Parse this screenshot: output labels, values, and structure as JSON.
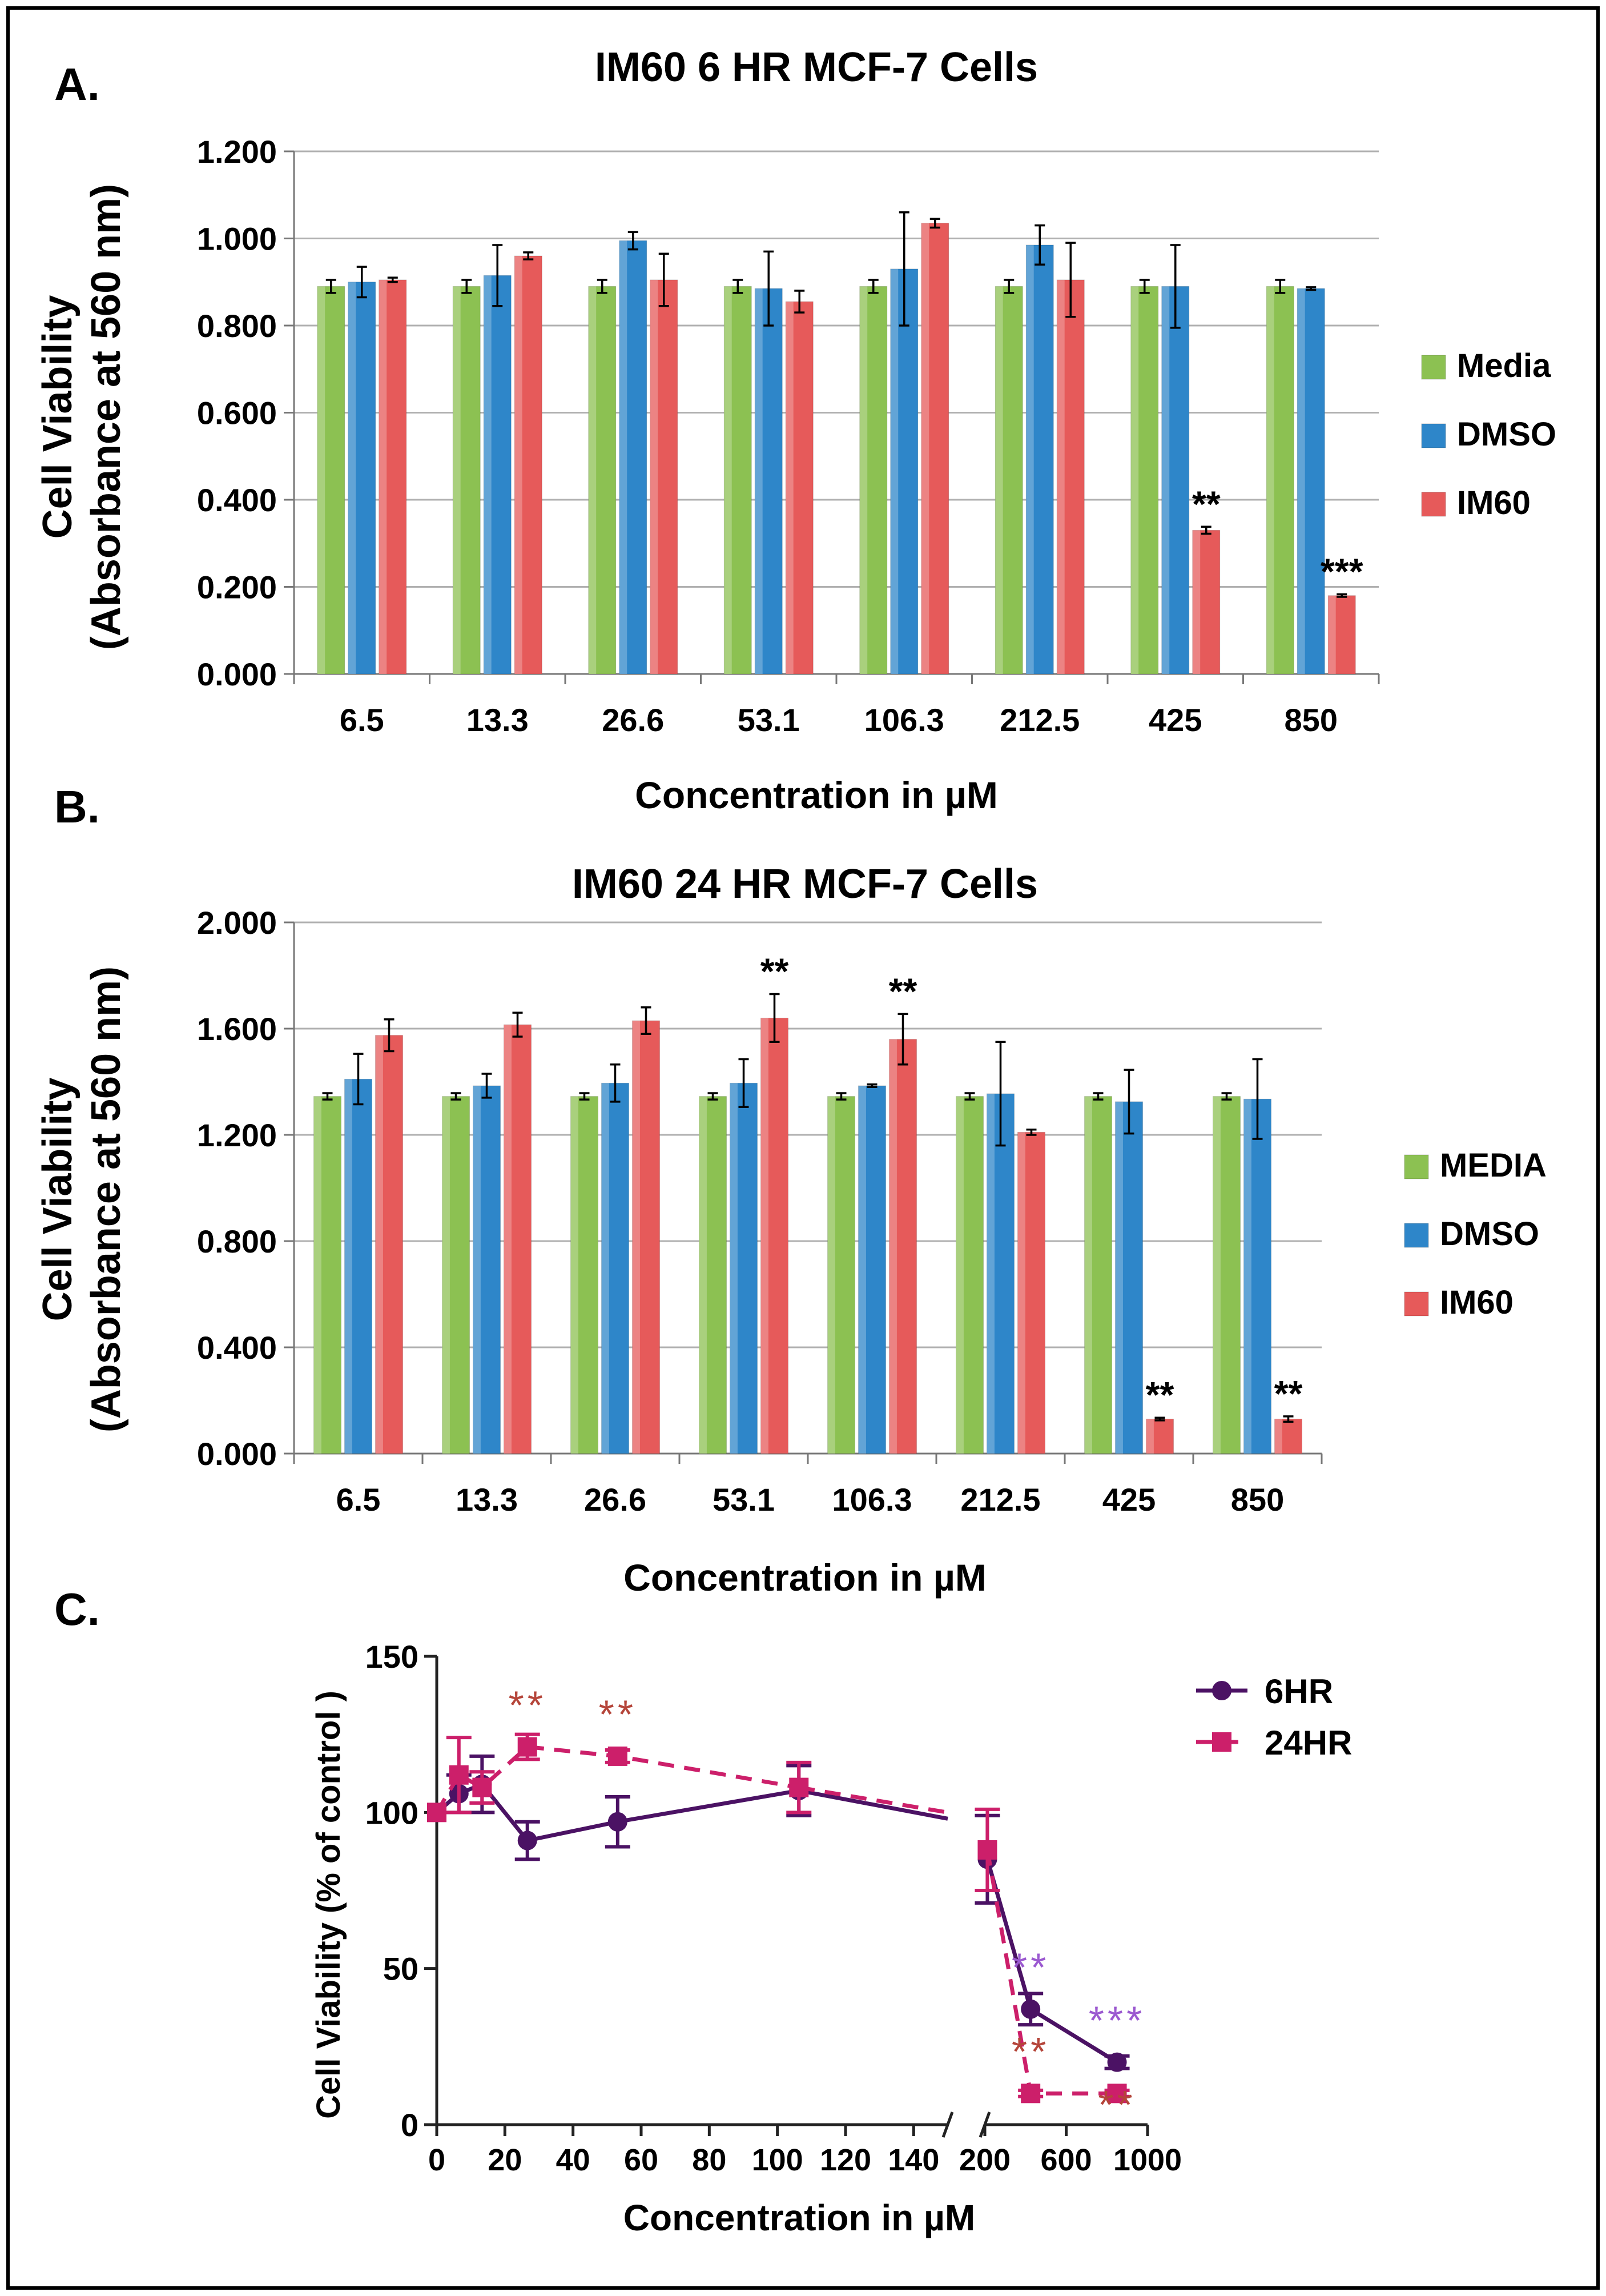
{
  "colors": {
    "media": "#8cc152",
    "dmso": "#2e86c9",
    "im60": "#e65a5a",
    "six_hr": "#4b1264",
    "twentyfour_hr": "#cc1f6a",
    "star_red": "#b5453a",
    "star_purple": "#9b59d0",
    "grid": "#b0b0b0",
    "axis": "#777777"
  },
  "chart_data": [
    {
      "type": "bar",
      "panel_label": "A.",
      "title": "IM60  6 HR MCF-7 Cells",
      "xlabel": "Concentration in µM",
      "ylabel_line1": "Cell Viability",
      "ylabel_line2": "(Absorbance at 560 nm)",
      "ylim": [
        0,
        1.2
      ],
      "yticks": [
        "0.000",
        "0.200",
        "0.400",
        "0.600",
        "0.800",
        "1.000",
        "1.200"
      ],
      "categories": [
        "6.5",
        "13.3",
        "26.6",
        "53.1",
        "106.3",
        "212.5",
        "425",
        "850"
      ],
      "series": [
        {
          "name": "Media",
          "values": [
            0.89,
            0.89,
            0.89,
            0.89,
            0.89,
            0.89,
            0.89,
            0.89
          ],
          "errors": [
            0.015,
            0.015,
            0.015,
            0.015,
            0.015,
            0.015,
            0.015,
            0.015
          ]
        },
        {
          "name": "DMSO",
          "values": [
            0.9,
            0.915,
            0.995,
            0.885,
            0.93,
            0.985,
            0.89,
            0.885
          ],
          "errors": [
            0.035,
            0.07,
            0.02,
            0.085,
            0.13,
            0.045,
            0.095,
            0.003
          ]
        },
        {
          "name": "IM60",
          "values": [
            0.905,
            0.96,
            0.905,
            0.855,
            1.035,
            0.905,
            0.33,
            0.18
          ],
          "errors": [
            0.005,
            0.008,
            0.06,
            0.025,
            0.01,
            0.085,
            0.008,
            0.003
          ]
        }
      ],
      "annotations": [
        {
          "category": "425",
          "series": "IM60",
          "text": "**"
        },
        {
          "category": "850",
          "series": "IM60",
          "text": "***"
        }
      ]
    },
    {
      "type": "bar",
      "panel_label": "B.",
      "title": "IM60  24 HR MCF-7 Cells",
      "xlabel": "Concentration in µM",
      "ylabel_line1": "Cell Viability",
      "ylabel_line2": "(Absorbance at 560 nm)",
      "ylim": [
        0,
        2.0
      ],
      "yticks": [
        "0.000",
        "0.400",
        "0.800",
        "1.200",
        "1.600",
        "2.000"
      ],
      "categories": [
        "6.5",
        "13.3",
        "26.6",
        "53.1",
        "106.3",
        "212.5",
        "425",
        "850"
      ],
      "series": [
        {
          "name": "MEDIA",
          "values": [
            1.345,
            1.345,
            1.345,
            1.345,
            1.345,
            1.345,
            1.345,
            1.345
          ],
          "errors": [
            0.012,
            0.012,
            0.012,
            0.012,
            0.012,
            0.012,
            0.012,
            0.012
          ]
        },
        {
          "name": "DMSO",
          "values": [
            1.41,
            1.385,
            1.395,
            1.395,
            1.385,
            1.355,
            1.325,
            1.335
          ],
          "errors": [
            0.095,
            0.045,
            0.07,
            0.09,
            0.005,
            0.195,
            0.12,
            0.15
          ]
        },
        {
          "name": "IM60",
          "values": [
            1.575,
            1.615,
            1.63,
            1.64,
            1.56,
            1.21,
            0.13,
            0.13
          ],
          "errors": [
            0.06,
            0.045,
            0.05,
            0.09,
            0.095,
            0.01,
            0.005,
            0.01
          ]
        }
      ],
      "annotations": [
        {
          "category": "53.1",
          "series": "IM60",
          "text": "**"
        },
        {
          "category": "106.3",
          "series": "IM60",
          "text": "**"
        },
        {
          "category": "425",
          "series": "IM60",
          "text": "**"
        },
        {
          "category": "850",
          "series": "IM60",
          "text": "**"
        }
      ]
    },
    {
      "type": "line",
      "panel_label": "C.",
      "xlabel": "Concentration in µM",
      "ylabel": "Cell Viability  (% of control )",
      "ylim": [
        0,
        150
      ],
      "yticks": [
        "0",
        "50",
        "100",
        "150"
      ],
      "xticks_left": [
        "0",
        "20",
        "40",
        "60",
        "80",
        "100",
        "120",
        "140"
      ],
      "xticks_right": [
        "200",
        "600",
        "1000"
      ],
      "x_break": "150 | 200",
      "series": [
        {
          "name": "6HR",
          "marker": "circle",
          "dash": "solid",
          "x": [
            0,
            6.5,
            13.3,
            26.6,
            53.1,
            106.3,
            212.5,
            425,
            850
          ],
          "y": [
            100,
            106,
            109,
            91,
            97,
            107,
            85,
            37,
            20
          ],
          "errors": [
            0,
            6,
            9,
            6,
            8,
            8,
            14,
            5,
            2
          ]
        },
        {
          "name": "24HR",
          "marker": "square",
          "dash": "dashed",
          "x": [
            0,
            6.5,
            13.3,
            26.6,
            53.1,
            106.3,
            212.5,
            425,
            850
          ],
          "y": [
            100,
            112,
            108,
            121,
            118,
            108,
            88,
            10,
            10
          ],
          "errors": [
            0,
            12,
            5,
            4,
            2,
            8,
            13,
            1,
            1
          ]
        }
      ],
      "annotations": [
        {
          "text": "**",
          "color": "star_red",
          "x": 26.6,
          "y": 130
        },
        {
          "text": "**",
          "color": "star_red",
          "x": 53.1,
          "y": 127
        },
        {
          "text": "**",
          "color": "star_purple",
          "x": 425,
          "y": 46
        },
        {
          "text": "**",
          "color": "star_red",
          "x": 425,
          "y": 19
        },
        {
          "text": "***",
          "color": "star_purple",
          "x": 850,
          "y": 29
        },
        {
          "text": "**",
          "color": "star_red",
          "x": 850,
          "y": 2
        }
      ]
    }
  ]
}
